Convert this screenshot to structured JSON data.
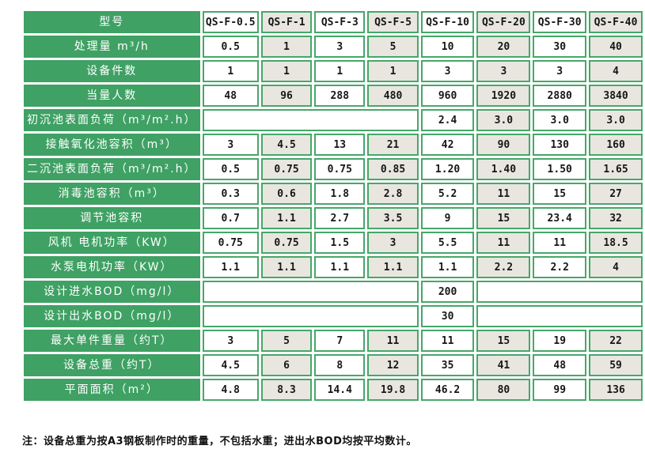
{
  "colors": {
    "green": "#3fa164",
    "border_green": "#46a76a",
    "cell_gray": "#e8e6df",
    "cell_white": "#ffffff",
    "label_text": "#ffffff",
    "value_text": "#161616"
  },
  "table": {
    "header": {
      "label": "型号",
      "models": [
        "QS-F-0.5",
        "QS-F-1",
        "QS-F-3",
        "QS-F-5",
        "QS-F-10",
        "QS-F-20",
        "QS-F-30",
        "QS-F-40"
      ]
    },
    "rows": [
      {
        "label": "处理量 m³/h",
        "cells": [
          "0.5",
          "1",
          "3",
          "5",
          "10",
          "20",
          "30",
          "40"
        ]
      },
      {
        "label": "设备件数",
        "cells": [
          "1",
          "1",
          "1",
          "1",
          "3",
          "3",
          "3",
          "4"
        ]
      },
      {
        "label": "当量人数",
        "cells": [
          "48",
          "96",
          "288",
          "480",
          "960",
          "1920",
          "2880",
          "3840"
        ]
      },
      {
        "label": "初沉池表面负荷（m³/m².h）",
        "cells": [
          {
            "span": 4,
            "text": ""
          },
          "2.4",
          "3.0",
          "3.0",
          "3.0"
        ]
      },
      {
        "label": "接触氧化池容积（m³）",
        "cells": [
          "3",
          "4.5",
          "13",
          "21",
          "42",
          "90",
          "130",
          "160"
        ]
      },
      {
        "label": "二沉池表面负荷（m³/m².h）",
        "cells": [
          "0.5",
          "0.75",
          "0.75",
          "0.85",
          "1.20",
          "1.40",
          "1.50",
          "1.65"
        ]
      },
      {
        "label": "消毒池容积（m³）",
        "cells": [
          "0.3",
          "0.6",
          "1.8",
          "2.8",
          "5.2",
          "11",
          "15",
          "27"
        ]
      },
      {
        "label": "调节池容积",
        "cells": [
          "0.7",
          "1.1",
          "2.7",
          "3.5",
          "9",
          "15",
          "23.4",
          "32"
        ]
      },
      {
        "label": "风机 电机功率（KW）",
        "cells": [
          "0.75",
          "0.75",
          "1.5",
          "3",
          "5.5",
          "11",
          "11",
          "18.5"
        ]
      },
      {
        "label": "水泵电机功率（KW）",
        "cells": [
          "1.1",
          "1.1",
          "1.1",
          "1.1",
          "1.1",
          "2.2",
          "2.2",
          "4"
        ]
      },
      {
        "label": "设计进水BOD（mg/l）",
        "cells": [
          {
            "span": 4,
            "text": ""
          },
          "200",
          {
            "span": 3,
            "text": ""
          }
        ]
      },
      {
        "label": "设计出水BOD（mg/l）",
        "cells": [
          {
            "span": 4,
            "text": ""
          },
          "30",
          {
            "span": 3,
            "text": ""
          }
        ]
      },
      {
        "label": "最大单件重量（约T）",
        "cells": [
          "3",
          "5",
          "7",
          "11",
          "11",
          "15",
          "19",
          "22"
        ]
      },
      {
        "label": "设备总重（约T）",
        "cells": [
          "4.5",
          "6",
          "8",
          "12",
          "35",
          "41",
          "48",
          "59"
        ]
      },
      {
        "label": "平面面积（m²）",
        "cells": [
          "4.8",
          "8.3",
          "14.4",
          "19.8",
          "46.2",
          "80",
          "99",
          "136"
        ]
      }
    ],
    "note": "注：设备总重为按A3钢板制作时的重量，不包括水重；进出水BOD均按平均数计。"
  }
}
